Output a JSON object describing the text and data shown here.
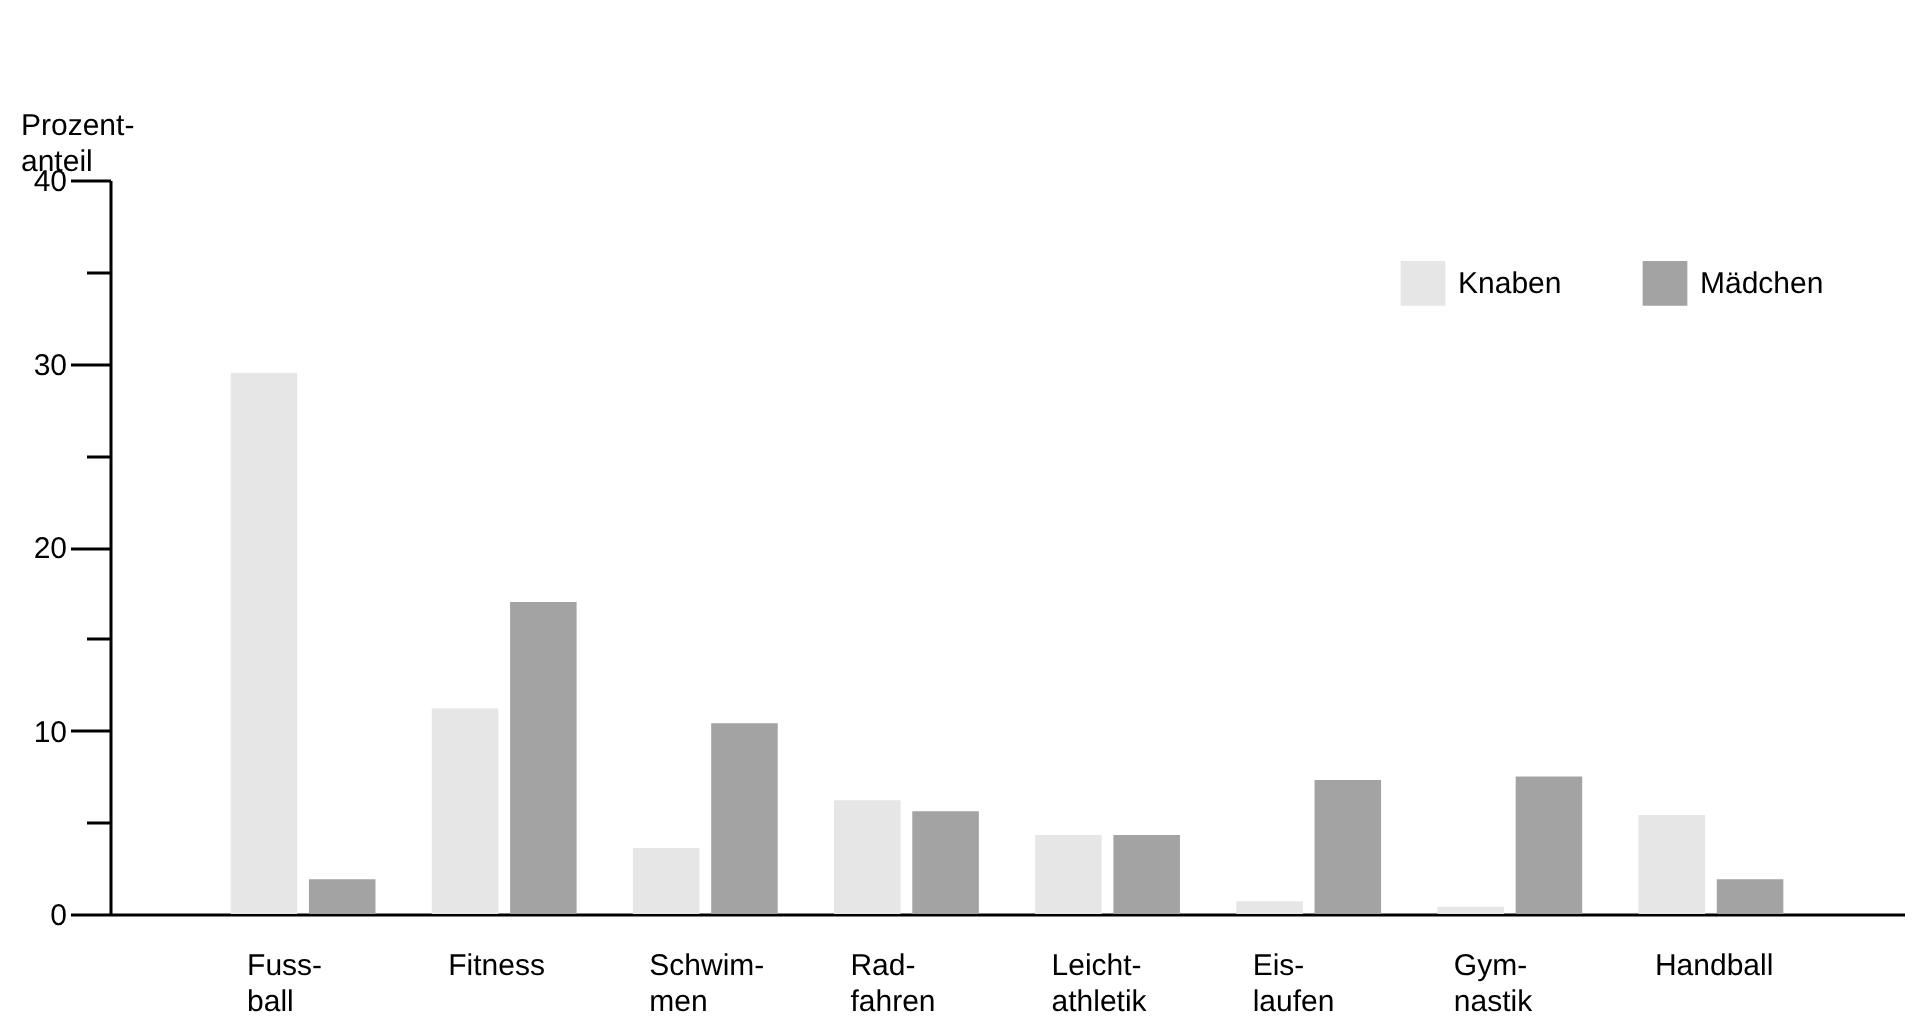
{
  "chart_data": {
    "type": "bar",
    "ylabel": "Prozent-\nanteil",
    "categories": [
      "Fuss-\nball",
      "Fitness",
      "Schwim-\nmen",
      "Rad-\nfahren",
      "Leicht-\nathletik",
      "Eis-\nlaufen",
      "Gym-\nnastik",
      "Handball"
    ],
    "series": [
      {
        "name": "Knaben",
        "color": "#e6e6e6",
        "values": [
          29.5,
          11.2,
          3.6,
          6.2,
          4.3,
          0.7,
          0.4,
          5.4
        ]
      },
      {
        "name": "Mädchen",
        "color": "#a3a3a3",
        "values": [
          1.9,
          17.0,
          10.4,
          5.6,
          4.3,
          7.3,
          7.5,
          1.9
        ]
      }
    ],
    "ylim": [
      0,
      40
    ],
    "yticks": [
      0,
      {
        "value": 5,
        "label": null
      },
      10,
      {
        "value": 15,
        "label": null
      },
      20,
      {
        "value": 25,
        "label": null
      },
      30,
      {
        "value": 35,
        "label": null
      },
      40
    ],
    "grid": false,
    "legend": "top right"
  }
}
